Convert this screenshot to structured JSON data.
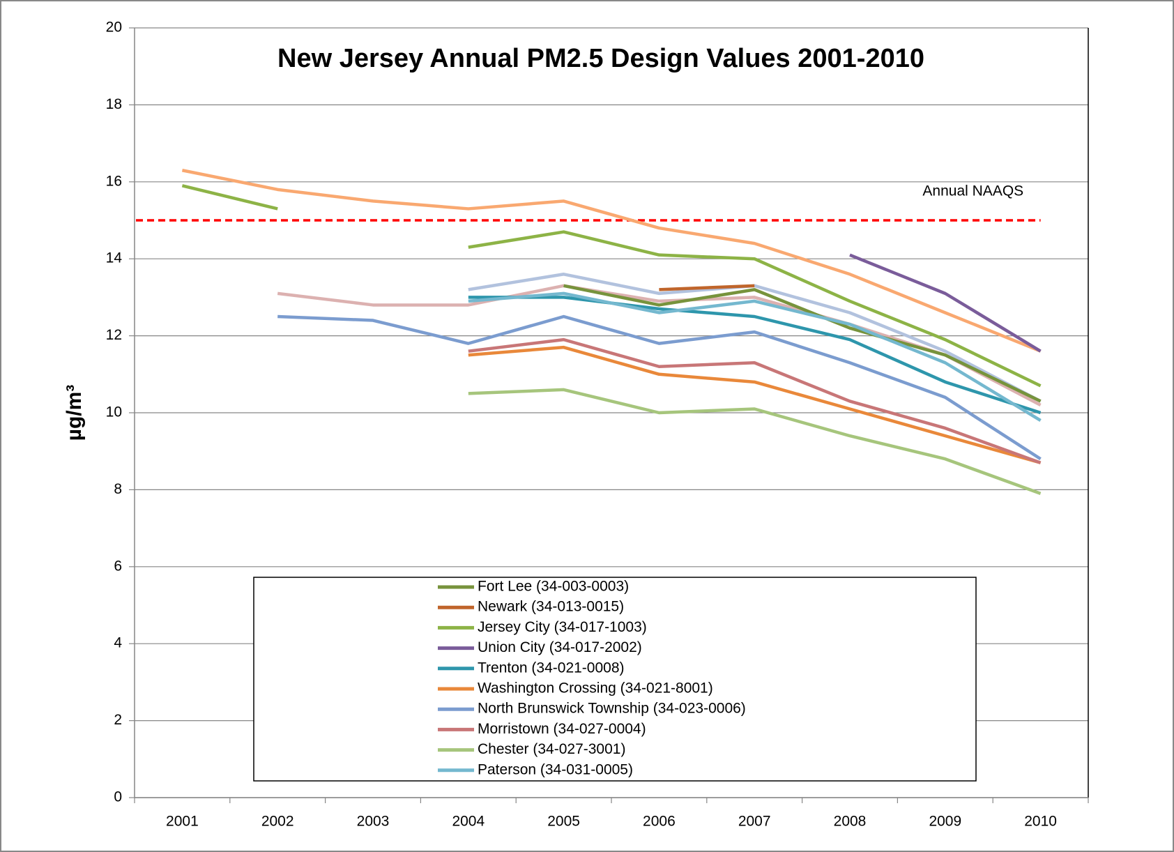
{
  "chart_data": {
    "type": "line",
    "title": "New Jersey Annual PM2.5 Design Values 2001-2010",
    "y_label": "µg/m³",
    "categories": [
      "2001",
      "2002",
      "2003",
      "2004",
      "2005",
      "2006",
      "2007",
      "2008",
      "2009",
      "2010"
    ],
    "ylim": [
      0,
      20
    ],
    "yticks": [
      0,
      2,
      4,
      6,
      8,
      10,
      12,
      14,
      16,
      18,
      20
    ],
    "grid": true,
    "threshold": {
      "value": 15,
      "label": "Annual NAAQS",
      "color": "#ff0000"
    },
    "series": [
      {
        "name": "Fort Lee (34-003-0003)",
        "color": "#77933c",
        "values": [
          null,
          null,
          null,
          null,
          13.3,
          12.8,
          13.2,
          12.2,
          11.5,
          10.3
        ]
      },
      {
        "name": "Newark (34-013-0015)",
        "color": "#c0652b",
        "values": [
          null,
          null,
          null,
          null,
          null,
          13.2,
          13.3,
          null,
          null,
          null
        ]
      },
      {
        "name": "Jersey City (34-017-1003)",
        "color": "#8db346",
        "values": [
          15.9,
          15.3,
          null,
          14.3,
          14.7,
          14.1,
          14.0,
          12.9,
          11.9,
          10.7
        ]
      },
      {
        "name": "Union City (34-017-2002)",
        "color": "#7a5c9a",
        "values": [
          null,
          null,
          null,
          null,
          null,
          null,
          null,
          14.1,
          13.1,
          11.6
        ]
      },
      {
        "name": "Trenton (34-021-0008)",
        "color": "#2e96ac",
        "values": [
          null,
          null,
          null,
          13.0,
          13.0,
          12.7,
          12.5,
          11.9,
          10.8,
          10.0
        ]
      },
      {
        "name": "Washington Crossing (34-021-8001)",
        "color": "#e9883a",
        "values": [
          null,
          null,
          null,
          11.5,
          11.7,
          11.0,
          10.8,
          10.1,
          9.4,
          8.7
        ]
      },
      {
        "name": "North Brunswick Township (34-023-0006)",
        "color": "#7b9ccf",
        "values": [
          null,
          12.5,
          12.4,
          11.8,
          12.5,
          11.8,
          12.1,
          11.3,
          10.4,
          8.8
        ]
      },
      {
        "name": "Morristown (34-027-0004)",
        "color": "#c87677",
        "values": [
          null,
          null,
          null,
          11.6,
          11.9,
          11.2,
          11.3,
          10.3,
          9.6,
          8.7
        ]
      },
      {
        "name": "Chester (34-027-3001)",
        "color": "#a6c57c",
        "values": [
          null,
          null,
          null,
          10.5,
          10.6,
          10.0,
          10.1,
          9.4,
          8.8,
          7.9
        ]
      },
      {
        "name": "Paterson (34-031-0005)",
        "color": "#74b8cf",
        "values": [
          null,
          null,
          null,
          12.9,
          13.1,
          12.6,
          12.9,
          12.3,
          11.3,
          9.8
        ]
      },
      {
        "color": "#f9a870",
        "values": [
          16.3,
          15.8,
          15.5,
          15.3,
          15.5,
          14.8,
          14.4,
          13.6,
          12.6,
          11.6
        ]
      },
      {
        "color": "#b2c2de",
        "values": [
          null,
          null,
          null,
          13.2,
          13.6,
          13.1,
          13.3,
          12.6,
          11.6,
          10.3
        ]
      },
      {
        "color": "#dcb1b0",
        "values": [
          null,
          13.1,
          12.8,
          12.8,
          13.3,
          12.9,
          13.0,
          12.3,
          11.5,
          10.2
        ]
      }
    ]
  }
}
